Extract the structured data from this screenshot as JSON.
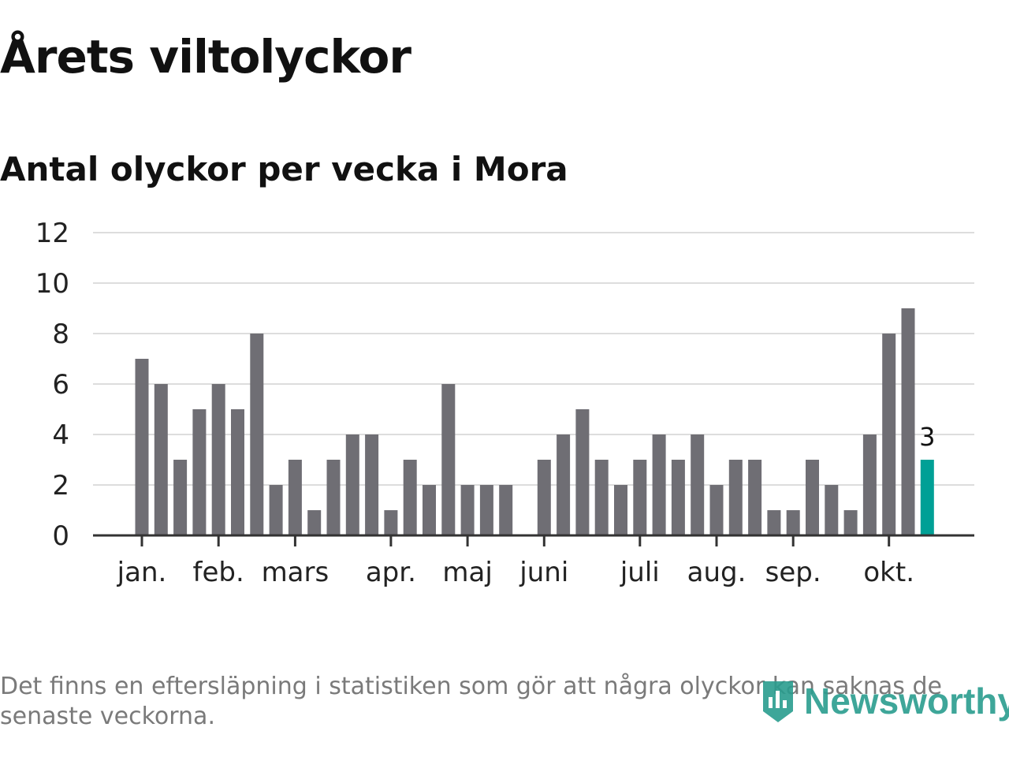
{
  "title": "Årets viltolyckor",
  "subtitle": "Antal olyckor per vecka i Mora",
  "footnote": "Det finns en eftersläpning i statistiken som gör att några olyckor kan saknas de senaste veckorna.",
  "logo_text": "Newsworthy",
  "colors": {
    "bar": "#6f6e74",
    "highlight": "#00a096",
    "grid": "#dddddd",
    "axis": "#333333",
    "logo": "#2a9d8f"
  },
  "chart_data": {
    "type": "bar",
    "title": "Årets viltolyckor",
    "subtitle": "Antal olyckor per vecka i Mora",
    "xlabel": "",
    "ylabel": "",
    "ylim": [
      0,
      12
    ],
    "yticks": [
      0,
      2,
      4,
      6,
      8,
      10,
      12
    ],
    "grid": true,
    "month_labels": [
      {
        "label": "jan.",
        "week": 1
      },
      {
        "label": "feb.",
        "week": 5
      },
      {
        "label": "mars",
        "week": 9
      },
      {
        "label": "apr.",
        "week": 14
      },
      {
        "label": "maj",
        "week": 18
      },
      {
        "label": "juni",
        "week": 22
      },
      {
        "label": "juli",
        "week": 27
      },
      {
        "label": "aug.",
        "week": 31
      },
      {
        "label": "sep.",
        "week": 35
      },
      {
        "label": "okt.",
        "week": 40
      }
    ],
    "weeks": [
      1,
      2,
      3,
      4,
      5,
      6,
      7,
      8,
      9,
      10,
      11,
      12,
      13,
      14,
      15,
      16,
      17,
      18,
      19,
      20,
      21,
      22,
      23,
      24,
      25,
      26,
      27,
      28,
      29,
      30,
      31,
      32,
      33,
      34,
      35,
      36,
      37,
      38,
      39,
      40,
      41,
      42
    ],
    "values": [
      7,
      6,
      3,
      5,
      6,
      5,
      8,
      2,
      3,
      1,
      3,
      4,
      4,
      1,
      3,
      2,
      6,
      2,
      2,
      2,
      0,
      3,
      4,
      5,
      3,
      2,
      3,
      4,
      3,
      4,
      2,
      3,
      3,
      1,
      1,
      3,
      2,
      1,
      4,
      8,
      9,
      3
    ],
    "highlight_index": 41,
    "highlight_label": "3"
  }
}
